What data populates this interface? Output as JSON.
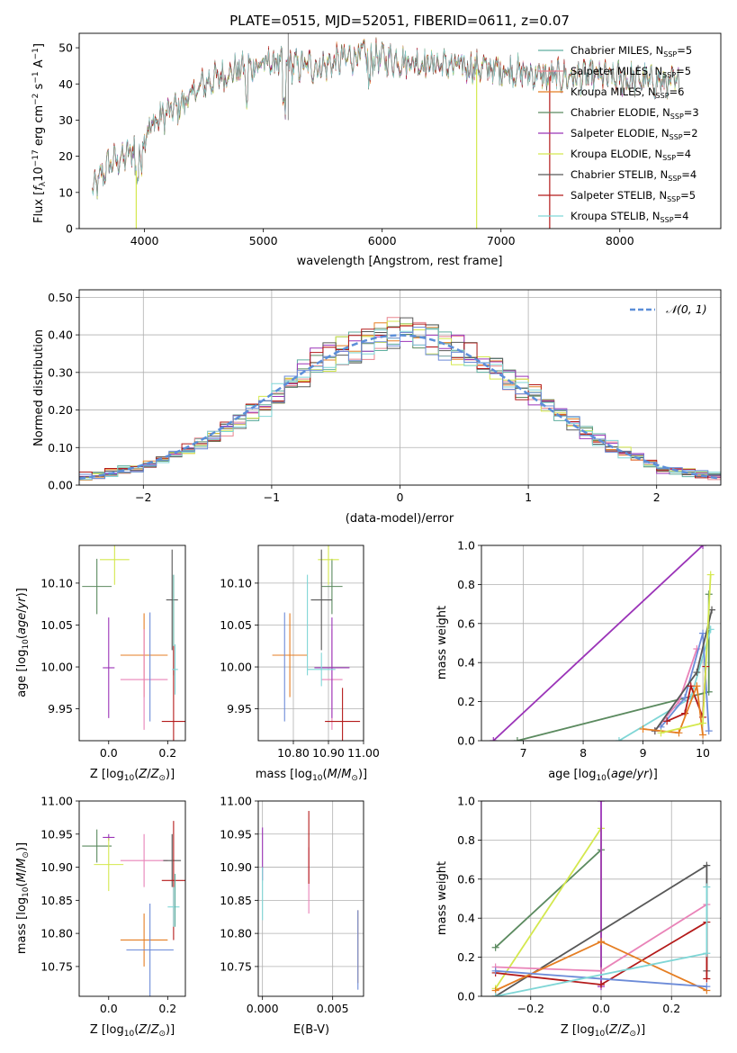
{
  "figure": {
    "title": "PLATE=0515, MJD=52051, FIBERID=0611, z=0.07",
    "colors": {
      "Chabrier MILES": "#5fae9f",
      "Salpeter MILES": "#e8858e",
      "Kroupa MILES": "#e57e23",
      "Chabrier ELODIE": "#5b8a5f",
      "Salpeter ELODIE": "#9b34b8",
      "Kroupa ELODIE": "#d4e84e",
      "Chabrier STELIB": "#585858",
      "Salpeter STELIB": "#b41a1a",
      "Kroupa STELIB": "#7fd6d6",
      "extra_pink": "#e983b8",
      "extra_blue": "#6c8bd8",
      "gaussian": "#5b8ed8"
    }
  },
  "chart_data": [
    {
      "type": "line",
      "name": "spectrum",
      "xlabel": "wavelength [Angstrom, rest frame]",
      "ylabel": "Flux [f_λ 10^-17 erg cm^-2 s^-1 A^-1]",
      "xlim": [
        3450,
        8850
      ],
      "ylim": [
        0,
        54
      ],
      "xticks": [
        4000,
        5000,
        6000,
        7000,
        8000
      ],
      "yticks": [
        0,
        10,
        20,
        30,
        40,
        50
      ],
      "grid": false,
      "legend_position": "top-right",
      "series": [
        {
          "name": "Chabrier MILES, N_SSP=5",
          "color": "#5fae9f"
        },
        {
          "name": "Salpeter MILES, N_SSP=5",
          "color": "#e8858e"
        },
        {
          "name": "Kroupa MILES, N_SSP=6",
          "color": "#e57e23"
        },
        {
          "name": "Chabrier ELODIE, N_SSP=3",
          "color": "#5b8a5f"
        },
        {
          "name": "Salpeter ELODIE, N_SSP=2",
          "color": "#9b34b8"
        },
        {
          "name": "Kroupa ELODIE, N_SSP=4",
          "color": "#d4e84e"
        },
        {
          "name": "Chabrier STELIB, N_SSP=4",
          "color": "#585858"
        },
        {
          "name": "Salpeter STELIB, N_SSP=5",
          "color": "#b41a1a"
        },
        {
          "name": "Kroupa STELIB, N_SSP=4",
          "color": "#7fd6d6"
        }
      ],
      "continuum": {
        "x": [
          3560,
          3700,
          3850,
          3950,
          4100,
          4300,
          4500,
          4700,
          4900,
          5100,
          5300,
          5500,
          5800,
          6000,
          6300,
          6600,
          7000,
          7400,
          7800,
          8200,
          8500
        ],
        "y": [
          10,
          18,
          20,
          24,
          30,
          34,
          40,
          43,
          45,
          46,
          45,
          45,
          48,
          47,
          46,
          45,
          44,
          42,
          42,
          41,
          40
        ]
      },
      "spikes": [
        {
          "x": 3930,
          "y0": 0,
          "y1": 16,
          "color": "#d4e84e"
        },
        {
          "x": 5210,
          "y0": 30,
          "y1": 54,
          "color": "#9b9b9b"
        },
        {
          "x": 6795,
          "y0": 0,
          "y1": 44,
          "color": "#d4e84e"
        },
        {
          "x": 7410,
          "y0": 0,
          "y1": 42,
          "color": "#b41a1a"
        }
      ]
    },
    {
      "type": "step",
      "name": "residuals",
      "xlabel": "(data-model)/error",
      "ylabel": "Normed distribution",
      "xlim": [
        -2.5,
        2.5
      ],
      "ylim": [
        0,
        0.52
      ],
      "xticks": [
        -2,
        -1,
        0,
        1,
        2
      ],
      "yticks": [
        0.0,
        0.1,
        0.2,
        0.3,
        0.4,
        0.5
      ],
      "grid": true,
      "legend_position": "top-right",
      "legend": "N(0,1)",
      "bins": {
        "start": -2.5,
        "width": 0.1,
        "count": 50
      },
      "envelope_seed": [
        0.024,
        0.028,
        0.032,
        0.038,
        0.045,
        0.053,
        0.065,
        0.08,
        0.095,
        0.11,
        0.13,
        0.15,
        0.17,
        0.19,
        0.215,
        0.24,
        0.27,
        0.3,
        0.32,
        0.34,
        0.355,
        0.37,
        0.385,
        0.4,
        0.405,
        0.405,
        0.4,
        0.385,
        0.37,
        0.36,
        0.345,
        0.325,
        0.305,
        0.285,
        0.26,
        0.235,
        0.21,
        0.19,
        0.165,
        0.14,
        0.12,
        0.1,
        0.085,
        0.07,
        0.055,
        0.045,
        0.038,
        0.032,
        0.028,
        0.024
      ]
    },
    {
      "type": "errorbar",
      "name": "age-vs-Z",
      "xlabel": "Z [log10(Z/Z⊙)]",
      "ylabel": "age  [log10(age/yr)]",
      "xlim": [
        -0.1,
        0.26
      ],
      "ylim": [
        9.912,
        10.145
      ],
      "xticks": [
        0.0,
        0.2
      ],
      "yticks": [
        9.95,
        10.0,
        10.05,
        10.1
      ],
      "points": [
        {
          "x": -0.04,
          "y": 10.096,
          "xerr": 0.05,
          "yerr": 0.033,
          "c": "#5b8a5f"
        },
        {
          "x": 0.02,
          "y": 10.128,
          "xerr": 0.05,
          "yerr": 0.03,
          "c": "#d4e84e"
        },
        {
          "x": 0.0,
          "y": 9.999,
          "xerr": 0.02,
          "yerr": 0.06,
          "c": "#9b34b8"
        },
        {
          "x": 0.12,
          "y": 10.014,
          "xerr": 0.08,
          "yerr": 0.05,
          "c": "#e57e23"
        },
        {
          "x": 0.12,
          "y": 9.985,
          "xerr": 0.08,
          "yerr": 0.06,
          "c": "#e983b8"
        },
        {
          "x": 0.14,
          "y": 10.0,
          "xerr": 0.0,
          "yerr": 0.065,
          "c": "#6c8bd8"
        },
        {
          "x": 0.215,
          "y": 10.08,
          "xerr": 0.02,
          "yerr": 0.06,
          "c": "#585858"
        },
        {
          "x": 0.22,
          "y": 10.05,
          "xerr": 0.0,
          "yerr": 0.06,
          "c": "#5fae9f"
        },
        {
          "x": 0.22,
          "y": 9.935,
          "xerr": 0.04,
          "yerr": 0.09,
          "c": "#b41a1a"
        },
        {
          "x": 0.225,
          "y": 9.997,
          "xerr": 0.01,
          "yerr": 0.03,
          "c": "#7fd6d6"
        }
      ]
    },
    {
      "type": "errorbar",
      "name": "age-vs-mass",
      "xlabel": "mass [log10(M/M⊙)]",
      "ylabel": "",
      "xlim": [
        10.7,
        11.0
      ],
      "ylim": [
        9.912,
        10.145
      ],
      "xticks": [
        10.8,
        10.9,
        11.0
      ],
      "yticks": [
        9.95,
        10.0,
        10.05,
        10.1
      ],
      "points": [
        {
          "x": 10.91,
          "y": 10.096,
          "xerr": 0.03,
          "yerr": 0.033,
          "c": "#5b8a5f"
        },
        {
          "x": 10.9,
          "y": 10.128,
          "xerr": 0.03,
          "yerr": 0.03,
          "c": "#d4e84e"
        },
        {
          "x": 10.79,
          "y": 10.014,
          "xerr": 0.05,
          "yerr": 0.05,
          "c": "#e57e23"
        },
        {
          "x": 10.775,
          "y": 10.0,
          "xerr": 0.0,
          "yerr": 0.065,
          "c": "#6c8bd8"
        },
        {
          "x": 10.91,
          "y": 9.985,
          "xerr": 0.03,
          "yerr": 0.06,
          "c": "#e983b8"
        },
        {
          "x": 10.91,
          "y": 9.999,
          "xerr": 0.05,
          "yerr": 0.06,
          "c": "#9b34b8"
        },
        {
          "x": 10.88,
          "y": 10.08,
          "xerr": 0.03,
          "yerr": 0.06,
          "c": "#585858"
        },
        {
          "x": 10.84,
          "y": 10.05,
          "xerr": 0.0,
          "yerr": 0.06,
          "c": "#7fd6d6"
        },
        {
          "x": 10.88,
          "y": 9.997,
          "xerr": 0.04,
          "yerr": 0.02,
          "c": "#7fd6d6"
        },
        {
          "x": 10.94,
          "y": 9.935,
          "xerr": 0.05,
          "yerr": 0.04,
          "c": "#b41a1a"
        }
      ]
    },
    {
      "type": "line",
      "name": "massweight-vs-age",
      "xlabel": "age  [log10(age/yr)]",
      "ylabel": "mass weight",
      "xlim": [
        6.3,
        10.3
      ],
      "ylim": [
        0,
        1.0
      ],
      "xticks": [
        7,
        8,
        9,
        10
      ],
      "yticks": [
        0.0,
        0.2,
        0.4,
        0.6,
        0.8,
        1.0
      ],
      "grid": true,
      "series": [
        {
          "c": "#9b34b8",
          "x": [
            6.5,
            10.0
          ],
          "y": [
            0.0,
            1.0
          ]
        },
        {
          "c": "#5b8a5f",
          "x": [
            6.9,
            10.1,
            10.1
          ],
          "y": [
            0.0,
            0.25,
            0.75
          ]
        },
        {
          "c": "#7fd6d6",
          "x": [
            8.6,
            9.8,
            10.13
          ],
          "y": [
            0.0,
            0.22,
            0.57
          ]
        },
        {
          "c": "#e983b8",
          "x": [
            9.2,
            9.6,
            9.9
          ],
          "y": [
            0.05,
            0.2,
            0.47
          ]
        },
        {
          "c": "#6c8bd8",
          "x": [
            9.3,
            9.7,
            10.0,
            10.1
          ],
          "y": [
            0.07,
            0.22,
            0.55,
            0.05
          ]
        },
        {
          "c": "#585858",
          "x": [
            9.2,
            9.9,
            10.15
          ],
          "y": [
            0.05,
            0.35,
            0.67
          ]
        },
        {
          "c": "#b41a1a",
          "x": [
            9.4,
            9.7,
            9.8,
            10.0,
            10.05
          ],
          "y": [
            0.1,
            0.14,
            0.28,
            0.12,
            0.38
          ]
        },
        {
          "c": "#e57e23",
          "x": [
            9.0,
            9.6,
            9.9,
            10.0
          ],
          "y": [
            0.06,
            0.04,
            0.28,
            0.03
          ]
        },
        {
          "c": "#d4e84e",
          "x": [
            9.3,
            10.0,
            10.13
          ],
          "y": [
            0.04,
            0.09,
            0.85
          ]
        }
      ]
    },
    {
      "type": "errorbar",
      "name": "mass-vs-Z",
      "xlabel": "Z [log10(Z/Z⊙)]",
      "ylabel": "mass [log10(M/M⊙)]",
      "xlim": [
        -0.1,
        0.26
      ],
      "ylim": [
        10.705,
        11.0
      ],
      "xticks": [
        0.0,
        0.2
      ],
      "yticks": [
        10.75,
        10.8,
        10.85,
        10.9,
        10.95,
        11.0
      ],
      "points": [
        {
          "x": -0.04,
          "y": 10.932,
          "xerr": 0.05,
          "yerr": 0.025,
          "c": "#5b8a5f"
        },
        {
          "x": 0.0,
          "y": 10.945,
          "xerr": 0.02,
          "yerr": 0.005,
          "c": "#9b34b8"
        },
        {
          "x": 0.0,
          "y": 10.904,
          "xerr": 0.05,
          "yerr": 0.04,
          "c": "#d4e84e"
        },
        {
          "x": 0.12,
          "y": 10.91,
          "xerr": 0.08,
          "yerr": 0.04,
          "c": "#e983b8"
        },
        {
          "x": 0.12,
          "y": 10.79,
          "xerr": 0.08,
          "yerr": 0.04,
          "c": "#e57e23"
        },
        {
          "x": 0.14,
          "y": 10.775,
          "xerr": 0.08,
          "yerr": 0.07,
          "c": "#6c8bd8"
        },
        {
          "x": 0.215,
          "y": 10.91,
          "xerr": 0.03,
          "yerr": 0.04,
          "c": "#585858"
        },
        {
          "x": 0.22,
          "y": 10.88,
          "xerr": 0.04,
          "yerr": 0.09,
          "c": "#b41a1a"
        },
        {
          "x": 0.22,
          "y": 10.84,
          "xerr": 0.02,
          "yerr": 0.03,
          "c": "#7fd6d6"
        },
        {
          "x": 0.225,
          "y": 10.85,
          "xerr": 0.0,
          "yerr": 0.04,
          "c": "#5fae9f"
        }
      ]
    },
    {
      "type": "errorbar",
      "name": "mass-vs-EBV",
      "xlabel": "E(B-V)",
      "ylabel": "",
      "xlim": [
        -0.0003,
        0.0072
      ],
      "ylim": [
        10.705,
        11.0
      ],
      "xticks": [
        0.0,
        0.005
      ],
      "xtick_labels": [
        "0.000",
        "0.005"
      ],
      "yticks": [
        10.75,
        10.8,
        10.85,
        10.9,
        10.95,
        11.0
      ],
      "points": [
        {
          "x": 0.0,
          "y": 10.92,
          "xerr": 0.0,
          "yerr": 0.04,
          "c": "#9b34b8"
        },
        {
          "x": 0.0,
          "y": 10.86,
          "xerr": 0.0,
          "yerr": 0.04,
          "c": "#7fd6d6"
        },
        {
          "x": 0.0033,
          "y": 10.88,
          "xerr": 0.0,
          "yerr": 0.05,
          "c": "#e983b8"
        },
        {
          "x": 0.0033,
          "y": 10.93,
          "xerr": 0.0,
          "yerr": 0.055,
          "c": "#b41a1a"
        },
        {
          "x": 0.0068,
          "y": 10.78,
          "xerr": 0.0,
          "yerr": 0.055,
          "c": "#e57e23"
        },
        {
          "x": 0.0068,
          "y": 10.775,
          "xerr": 0.0,
          "yerr": 0.06,
          "c": "#6c8bd8"
        }
      ]
    },
    {
      "type": "line",
      "name": "massweight-vs-Z",
      "xlabel": "Z [log10(Z/Z⊙)]",
      "ylabel": "mass weight",
      "xlim": [
        -0.34,
        0.34
      ],
      "ylim": [
        0,
        1.0
      ],
      "xticks": [
        -0.2,
        0.0,
        0.2
      ],
      "yticks": [
        0.0,
        0.2,
        0.4,
        0.6,
        0.8,
        1.0
      ],
      "grid": true,
      "series": [
        {
          "c": "#5b8a5f",
          "x": [
            -0.3,
            0.0
          ],
          "y": [
            0.25,
            0.75
          ]
        },
        {
          "c": "#d4e84e",
          "x": [
            -0.3,
            0.0,
            0.0
          ],
          "y": [
            0.04,
            0.86,
            0.09
          ]
        },
        {
          "c": "#9b34b8",
          "x": [
            0.0,
            0.0
          ],
          "y": [
            0.05,
            1.0
          ]
        },
        {
          "c": "#585858",
          "x": [
            -0.3,
            0.3,
            0.3
          ],
          "y": [
            0.0,
            0.67,
            0.13
          ]
        },
        {
          "c": "#e983b8",
          "x": [
            -0.3,
            0.0,
            0.3
          ],
          "y": [
            0.15,
            0.13,
            0.47
          ]
        },
        {
          "c": "#b41a1a",
          "x": [
            -0.3,
            0.0,
            0.3,
            0.3
          ],
          "y": [
            0.12,
            0.06,
            0.38,
            0.09
          ]
        },
        {
          "c": "#e57e23",
          "x": [
            -0.3,
            0.0,
            0.3
          ],
          "y": [
            0.03,
            0.28,
            0.03
          ]
        },
        {
          "c": "#6c8bd8",
          "x": [
            -0.3,
            0.3
          ],
          "y": [
            0.13,
            0.05
          ]
        },
        {
          "c": "#7fd6d6",
          "x": [
            -0.3,
            0.3,
            0.3
          ],
          "y": [
            0.0,
            0.22,
            0.56
          ]
        }
      ]
    }
  ]
}
